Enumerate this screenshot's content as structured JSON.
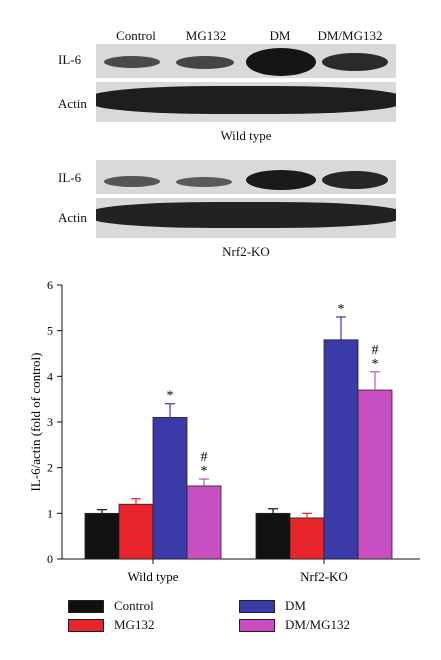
{
  "blot_panel": {
    "lane_labels": [
      "Control",
      "MG132",
      "DM",
      "DM/MG132"
    ],
    "wild_type": {
      "rows": [
        "IL-6",
        "Actin"
      ],
      "caption": "Wild type"
    },
    "nrf2_ko": {
      "rows": [
        "IL-6",
        "Actin"
      ],
      "caption": "Nrf2-KO"
    }
  },
  "chart_data": {
    "type": "bar",
    "categories": [
      "Wild type",
      "Nrf2-KO"
    ],
    "ylabel": "IL-6/actin (fold of control)",
    "xlabel": "",
    "title": "",
    "ylim": [
      0,
      6
    ],
    "yticks": [
      "0",
      "1",
      "2",
      "3",
      "4",
      "5",
      "6"
    ],
    "grid": false,
    "legend_position": "bottom",
    "series": [
      {
        "name": "Control",
        "color": "#111111",
        "values": [
          1.0,
          1.0
        ],
        "errors": [
          0.08,
          0.1
        ],
        "marks": [
          "",
          ""
        ]
      },
      {
        "name": "MG132",
        "color": "#e8252a",
        "values": [
          1.2,
          0.9
        ],
        "errors": [
          0.12,
          0.1
        ],
        "marks": [
          "",
          ""
        ]
      },
      {
        "name": "DM",
        "color": "#3a3aa8",
        "values": [
          3.1,
          4.8
        ],
        "errors": [
          0.3,
          0.5
        ],
        "marks": [
          "*",
          "*"
        ]
      },
      {
        "name": "DM/MG132",
        "color": "#c84fc0",
        "values": [
          1.6,
          3.7
        ],
        "errors": [
          0.15,
          0.4
        ],
        "marks": [
          "#\n*",
          "#\n*"
        ]
      }
    ]
  }
}
